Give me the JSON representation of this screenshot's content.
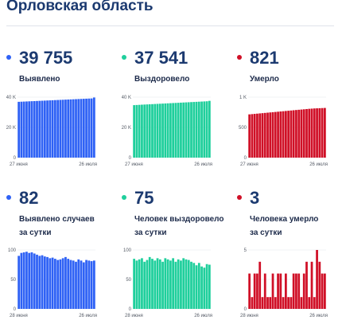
{
  "page": {
    "title": "Орловская область"
  },
  "colors": {
    "blue": "#2f62f5",
    "teal": "#1fcf9c",
    "red": "#d01027"
  },
  "cards": [
    {
      "id": "detected",
      "value": "39 755",
      "label_lines": [
        "Выявлено"
      ],
      "color": "#2f62f5"
    },
    {
      "id": "recovered",
      "value": "37 541",
      "label_lines": [
        "Выздоровело"
      ],
      "color": "#1fcf9c"
    },
    {
      "id": "deaths",
      "value": "821",
      "label_lines": [
        "Умерло"
      ],
      "color": "#d01027"
    },
    {
      "id": "daily-detected",
      "value": "82",
      "label_lines": [
        "Выявлено случаев",
        "за сутки"
      ],
      "color": "#2f62f5"
    },
    {
      "id": "daily-recovered",
      "value": "75",
      "label_lines": [
        "Человек выздоровело",
        "за сутки"
      ],
      "color": "#1fcf9c"
    },
    {
      "id": "daily-deaths",
      "value": "3",
      "label_lines": [
        "Человека умерло",
        "за сутки"
      ],
      "color": "#d01027"
    }
  ],
  "chart_data": [
    {
      "type": "bar",
      "color": "#2f62f5",
      "ylim": [
        0,
        40000
      ],
      "yticks": [
        0,
        20000,
        40000
      ],
      "ytick_labels": [
        "0",
        "20 K",
        "40 K"
      ],
      "xtick_labels": [
        "27 июня",
        "26 июля"
      ],
      "values": [
        36900,
        36980,
        37060,
        37140,
        37220,
        37300,
        37380,
        37460,
        37540,
        37620,
        37700,
        37780,
        37860,
        37940,
        38020,
        38100,
        38180,
        38260,
        38340,
        38420,
        38500,
        38580,
        38660,
        38740,
        38820,
        38900,
        38980,
        39060,
        39140,
        39755
      ]
    },
    {
      "type": "bar",
      "color": "#1fcf9c",
      "ylim": [
        0,
        40000
      ],
      "yticks": [
        0,
        20000,
        40000
      ],
      "ytick_labels": [
        "0",
        "20 K",
        "40 K"
      ],
      "xtick_labels": [
        "27 июня",
        "26 июля"
      ],
      "values": [
        34700,
        34800,
        34900,
        35000,
        35090,
        35180,
        35270,
        35360,
        35450,
        35540,
        35630,
        35720,
        35810,
        35900,
        35990,
        36080,
        36170,
        36260,
        36350,
        36440,
        36530,
        36620,
        36710,
        36800,
        36890,
        36980,
        37070,
        37160,
        37250,
        37541
      ]
    },
    {
      "type": "bar",
      "color": "#d01027",
      "ylim": [
        0,
        1000
      ],
      "yticks": [
        0,
        500,
        1000
      ],
      "ytick_labels": [
        "0",
        "500",
        "1 K"
      ],
      "xtick_labels": [
        "27 июня",
        "26 июля"
      ],
      "values": [
        715,
        719,
        723,
        727,
        731,
        735,
        739,
        743,
        747,
        751,
        755,
        759,
        763,
        767,
        771,
        775,
        779,
        783,
        787,
        791,
        795,
        799,
        803,
        807,
        810,
        813,
        815,
        817,
        819,
        821
      ]
    },
    {
      "type": "bar",
      "color": "#2f62f5",
      "ylim": [
        0,
        100
      ],
      "yticks": [
        0,
        50,
        100
      ],
      "ytick_labels": [
        "0",
        "50",
        "100"
      ],
      "xtick_labels": [
        "28 июня",
        "26 июля"
      ],
      "values": [
        90,
        95,
        96,
        97,
        95,
        96,
        94,
        92,
        90,
        91,
        89,
        88,
        86,
        87,
        85,
        83,
        84,
        86,
        88,
        85,
        83,
        82,
        80,
        84,
        82,
        79,
        83,
        82,
        81,
        82
      ]
    },
    {
      "type": "bar",
      "color": "#1fcf9c",
      "ylim": [
        0,
        100
      ],
      "yticks": [
        0,
        50,
        100
      ],
      "ytick_labels": [
        "0",
        "50",
        "100"
      ],
      "xtick_labels": [
        "28 июня",
        "26 июля"
      ],
      "values": [
        85,
        82,
        84,
        86,
        80,
        83,
        88,
        85,
        82,
        86,
        84,
        80,
        86,
        84,
        82,
        86,
        80,
        84,
        82,
        86,
        84,
        83,
        80,
        78,
        74,
        78,
        72,
        70,
        76,
        75
      ]
    },
    {
      "type": "bar",
      "color": "#d01027",
      "ylim": [
        0,
        5
      ],
      "yticks": [
        0,
        2.5,
        5
      ],
      "ytick_labels": [
        "0",
        "",
        "5"
      ],
      "xtick_labels": [
        "28 июня",
        "26 июля"
      ],
      "values": [
        3,
        1,
        3,
        3,
        4,
        1,
        3,
        1,
        1,
        3,
        1,
        3,
        3,
        1,
        3,
        1,
        1,
        3,
        3,
        3,
        1,
        3,
        4,
        1,
        4,
        1,
        5,
        4,
        3,
        3
      ]
    }
  ]
}
